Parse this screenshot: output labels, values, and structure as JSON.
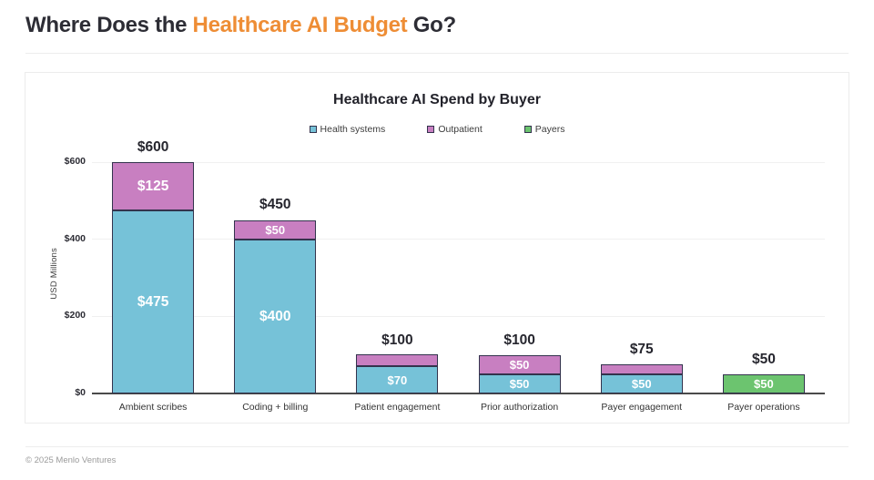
{
  "page": {
    "title": {
      "prefix": "Where Does the ",
      "highlight": "Healthcare AI Budget",
      "suffix": " Go?"
    },
    "footer": "© 2025 Menlo Ventures"
  },
  "colors": {
    "accent_orange": "#EE8D35",
    "text_dark": "#2D2D35",
    "bar_border": "#33334D",
    "axis_line": "#4A4A4A",
    "gridline": "#F0F0F0",
    "health_systems": "#76C2D8",
    "outpatient": "#C87FC1",
    "payers": "#6CC46F"
  },
  "chart_data": {
    "type": "bar",
    "stacked": true,
    "title": "Healthcare AI Spend by Buyer",
    "ylabel": "USD Millions",
    "xlabel": "",
    "ylim": [
      0,
      600
    ],
    "grid": "horizontal",
    "legend_position": "top",
    "yticks": [
      {
        "value": 0,
        "label": "$0"
      },
      {
        "value": 200,
        "label": "$200"
      },
      {
        "value": 400,
        "label": "$400"
      },
      {
        "value": 600,
        "label": "$600"
      }
    ],
    "categories": [
      "Ambient scribes",
      "Coding + billing",
      "Patient engagement",
      "Prior authorization",
      "Payer engagement",
      "Payer operations"
    ],
    "series": [
      {
        "name": "Health systems",
        "color": "#76C2D8",
        "values": [
          475,
          400,
          70,
          50,
          50,
          0
        ],
        "segment_labels": [
          "$475",
          "$400",
          "$70",
          "$50",
          "$50",
          ""
        ]
      },
      {
        "name": "Outpatient",
        "color": "#C87FC1",
        "values": [
          125,
          50,
          30,
          50,
          25,
          0
        ],
        "segment_labels": [
          "$125",
          "$50",
          "",
          "$50",
          "",
          ""
        ]
      },
      {
        "name": "Payers",
        "color": "#6CC46F",
        "values": [
          0,
          0,
          0,
          0,
          0,
          50
        ],
        "segment_labels": [
          "",
          "",
          "",
          "",
          "",
          "$50"
        ]
      }
    ],
    "totals": [
      "$600",
      "$450",
      "$100",
      "$100",
      "$75",
      "$50"
    ]
  }
}
